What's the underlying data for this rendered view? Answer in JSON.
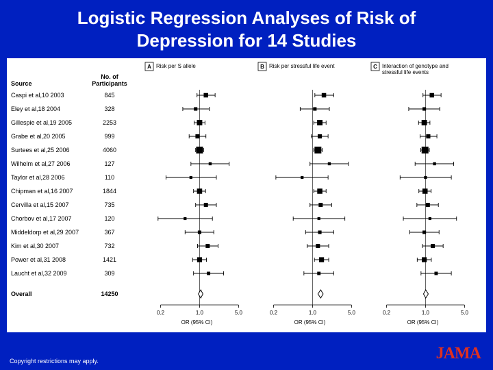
{
  "title": "Logistic Regression Analyses of Risk of Depression for 14 Studies",
  "panel_labels": {
    "A": "Risk per S allele",
    "B": "Risk per stressful life event",
    "C": "Interaction of genotype and\nstressful life events"
  },
  "columns": {
    "source": "Source",
    "n": "No. of\nParticipants"
  },
  "overall_label": "Overall",
  "overall_n": 14250,
  "axis_label": "OR (95% CI)",
  "ticks": [
    0.2,
    1.0,
    5.0
  ],
  "footer": "Copyright restrictions may apply.",
  "logo": "JAMA",
  "colors": {
    "bg_slide": "#0020c0",
    "marker": "#000000",
    "line": "#000000",
    "axis": "#000000",
    "diamond_stroke": "#000000",
    "diamond_fill": "#ffffff"
  },
  "fontsize": {
    "title": 26,
    "header": 9,
    "row": 9,
    "axis": 9
  },
  "log_domain": [
    0.1,
    8.0
  ],
  "studies": [
    {
      "label": "Caspi et al,10 2003",
      "n": 845,
      "A": {
        "or": 1.3,
        "lo": 0.9,
        "hi": 1.9,
        "w": 1.0
      },
      "B": {
        "or": 1.6,
        "lo": 1.1,
        "hi": 2.4,
        "w": 1.0
      },
      "C": {
        "or": 1.3,
        "lo": 0.9,
        "hi": 1.9,
        "w": 1.0
      }
    },
    {
      "label": "Eley et al,18 2004",
      "n": 328,
      "A": {
        "or": 0.85,
        "lo": 0.5,
        "hi": 1.5,
        "w": 0.6
      },
      "B": {
        "or": 1.1,
        "lo": 0.6,
        "hi": 2.0,
        "w": 0.6
      },
      "C": {
        "or": 0.95,
        "lo": 0.5,
        "hi": 1.8,
        "w": 0.6
      }
    },
    {
      "label": "Gillespie et al,19 2005",
      "n": 2253,
      "A": {
        "or": 1.0,
        "lo": 0.8,
        "hi": 1.25,
        "w": 1.4
      },
      "B": {
        "or": 1.35,
        "lo": 1.05,
        "hi": 1.75,
        "w": 1.4
      },
      "C": {
        "or": 0.95,
        "lo": 0.75,
        "hi": 1.2,
        "w": 1.4
      }
    },
    {
      "label": "Grabe et al,20 2005",
      "n": 999,
      "A": {
        "or": 0.92,
        "lo": 0.65,
        "hi": 1.3,
        "w": 0.9
      },
      "B": {
        "or": 1.35,
        "lo": 0.95,
        "hi": 1.9,
        "w": 0.9
      },
      "C": {
        "or": 1.12,
        "lo": 0.8,
        "hi": 1.6,
        "w": 0.9
      }
    },
    {
      "label": "Surtees et al,25 2006",
      "n": 4060,
      "A": {
        "or": 1.0,
        "lo": 0.85,
        "hi": 1.18,
        "w": 2.0
      },
      "B": {
        "or": 1.25,
        "lo": 1.05,
        "hi": 1.5,
        "w": 2.0
      },
      "C": {
        "or": 0.98,
        "lo": 0.82,
        "hi": 1.17,
        "w": 2.0
      }
    },
    {
      "label": "Wilhelm et al,27 2006",
      "n": 127,
      "A": {
        "or": 1.55,
        "lo": 0.7,
        "hi": 3.4,
        "w": 0.4
      },
      "B": {
        "or": 2.0,
        "lo": 0.9,
        "hi": 4.4,
        "w": 0.4
      },
      "C": {
        "or": 1.45,
        "lo": 0.65,
        "hi": 3.2,
        "w": 0.4
      }
    },
    {
      "label": "Taylor et al,28 2006",
      "n": 110,
      "A": {
        "or": 0.7,
        "lo": 0.25,
        "hi": 2.0,
        "w": 0.35
      },
      "B": {
        "or": 0.65,
        "lo": 0.22,
        "hi": 1.9,
        "w": 0.35
      },
      "C": {
        "or": 1.0,
        "lo": 0.35,
        "hi": 2.9,
        "w": 0.35
      }
    },
    {
      "label": "Chipman et al,16 2007",
      "n": 1844,
      "A": {
        "or": 1.0,
        "lo": 0.78,
        "hi": 1.28,
        "w": 1.3
      },
      "B": {
        "or": 1.35,
        "lo": 1.05,
        "hi": 1.75,
        "w": 1.3
      },
      "C": {
        "or": 0.98,
        "lo": 0.76,
        "hi": 1.26,
        "w": 1.3
      }
    },
    {
      "label": "Cervilla et al,15 2007",
      "n": 735,
      "A": {
        "or": 1.3,
        "lo": 0.85,
        "hi": 2.0,
        "w": 0.85
      },
      "B": {
        "or": 1.4,
        "lo": 0.9,
        "hi": 2.2,
        "w": 0.85
      },
      "C": {
        "or": 1.1,
        "lo": 0.7,
        "hi": 1.7,
        "w": 0.85
      }
    },
    {
      "label": "Chorbov et al,17 2007",
      "n": 120,
      "A": {
        "or": 0.55,
        "lo": 0.18,
        "hi": 1.7,
        "w": 0.35
      },
      "B": {
        "or": 1.3,
        "lo": 0.45,
        "hi": 3.8,
        "w": 0.35
      },
      "C": {
        "or": 1.2,
        "lo": 0.4,
        "hi": 3.6,
        "w": 0.35
      }
    },
    {
      "label": "Middeldorp et al,29 2007",
      "n": 367,
      "A": {
        "or": 1.0,
        "lo": 0.55,
        "hi": 1.8,
        "w": 0.6
      },
      "B": {
        "or": 1.35,
        "lo": 0.75,
        "hi": 2.4,
        "w": 0.6
      },
      "C": {
        "or": 0.95,
        "lo": 0.52,
        "hi": 1.75,
        "w": 0.6
      }
    },
    {
      "label": "Kim et al,30 2007",
      "n": 732,
      "A": {
        "or": 1.4,
        "lo": 0.92,
        "hi": 2.15,
        "w": 0.85
      },
      "B": {
        "or": 1.25,
        "lo": 0.8,
        "hi": 1.95,
        "w": 0.85
      },
      "C": {
        "or": 1.35,
        "lo": 0.88,
        "hi": 2.07,
        "w": 0.85
      }
    },
    {
      "label": "Power et al,31 2008",
      "n": 1421,
      "A": {
        "or": 1.0,
        "lo": 0.75,
        "hi": 1.33,
        "w": 1.2
      },
      "B": {
        "or": 1.45,
        "lo": 1.08,
        "hi": 1.95,
        "w": 1.2
      },
      "C": {
        "or": 0.95,
        "lo": 0.71,
        "hi": 1.27,
        "w": 1.2
      }
    },
    {
      "label": "Laucht et al,32 2009",
      "n": 309,
      "A": {
        "or": 1.45,
        "lo": 0.78,
        "hi": 2.7,
        "w": 0.55
      },
      "B": {
        "or": 1.3,
        "lo": 0.7,
        "hi": 2.4,
        "w": 0.55
      },
      "C": {
        "or": 1.55,
        "lo": 0.83,
        "hi": 2.9,
        "w": 0.55
      }
    }
  ],
  "overall": {
    "A": {
      "or": 1.05,
      "lo": 0.95,
      "hi": 1.15
    },
    "B": {
      "or": 1.4,
      "lo": 1.25,
      "hi": 1.55
    },
    "C": {
      "or": 1.01,
      "lo": 0.92,
      "hi": 1.12
    }
  }
}
